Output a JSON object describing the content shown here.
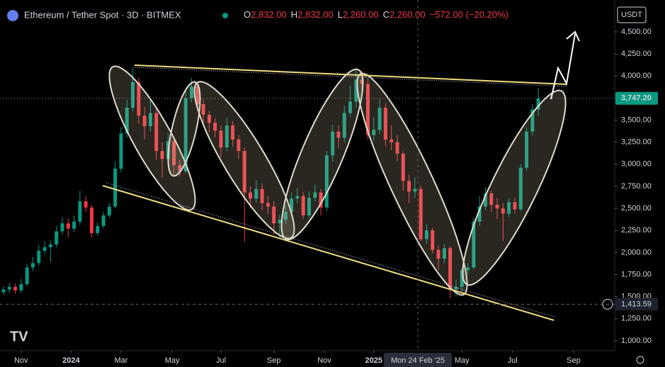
{
  "chart_data": {
    "type": "candlestick",
    "title": "Ethereum / Tether Spot · 3D · BITMEX",
    "header_values": [
      {
        "key": "O",
        "value": "2,832.00"
      },
      {
        "key": "H",
        "value": "2,832.00"
      },
      {
        "key": "L",
        "value": "2,260.00"
      },
      {
        "key": "C",
        "value": "2,260.00"
      }
    ],
    "change": "−572.00 (−20.20%)",
    "currency": "USDT",
    "up_color": "#089981",
    "down_color": "#f23645",
    "open": [
      1550,
      1580,
      1610,
      1570,
      1640,
      1830,
      1880,
      2020,
      2060,
      2090,
      2240,
      2330,
      2270,
      2350,
      2580,
      2510,
      2220,
      2300,
      2420,
      2520,
      2950,
      3350,
      3640,
      3930,
      3550,
      3430,
      3580,
      3150,
      3060,
      3260,
      2990,
      2920,
      3750,
      3880,
      3680,
      3560,
      3470,
      3380,
      3190,
      3440,
      3280,
      3150,
      2680,
      2610,
      2720,
      2560,
      2520,
      2330,
      2370,
      2460,
      2610,
      2640,
      2420,
      2620,
      2680,
      2510,
      3100,
      3370,
      3300,
      3580,
      3710,
      3960,
      3910,
      3330,
      3390,
      3640,
      3280,
      3250,
      3120,
      2810,
      2690,
      2720,
      2150,
      2250,
      2030,
      1930,
      2050,
      1580,
      1610,
      1800,
      1830,
      2350,
      2520,
      2670,
      2540,
      2500,
      2440,
      2570,
      2490,
      2960,
      3370,
      3620
    ],
    "high": [
      1620,
      1660,
      1650,
      1700,
      1870,
      1950,
      2090,
      2130,
      2140,
      2300,
      2400,
      2390,
      2420,
      2700,
      2640,
      2540,
      2340,
      2460,
      2560,
      3030,
      3420,
      3730,
      4090,
      3980,
      3650,
      3730,
      3620,
      3250,
      3350,
      3320,
      3050,
      3830,
      3980,
      3920,
      3740,
      3600,
      3520,
      3440,
      3530,
      3490,
      3330,
      3190,
      2750,
      2820,
      2780,
      2640,
      2580,
      2430,
      2530,
      2680,
      2730,
      2680,
      2690,
      2770,
      2720,
      3150,
      3450,
      3440,
      3660,
      3890,
      4070,
      4060,
      3970,
      3530,
      3740,
      3690,
      3440,
      3330,
      3150,
      2880,
      2850,
      2760,
      2320,
      2280,
      2080,
      2100,
      2070,
      1690,
      1830,
      1880,
      2400,
      2640,
      2740,
      2700,
      2620,
      2560,
      2620,
      2620,
      3000,
      3420,
      3680,
      3860
    ],
    "low": [
      1520,
      1540,
      1530,
      1540,
      1620,
      1790,
      1850,
      1980,
      1890,
      2060,
      2200,
      2170,
      2230,
      2310,
      2460,
      2170,
      2190,
      2270,
      2390,
      2500,
      2910,
      3300,
      3600,
      3460,
      3280,
      3370,
      3050,
      2850,
      3000,
      2880,
      2860,
      2900,
      3700,
      3620,
      3450,
      3360,
      3300,
      3080,
      3150,
      3200,
      3060,
      2120,
      2500,
      2560,
      2480,
      2440,
      2200,
      2160,
      2320,
      2410,
      2560,
      2380,
      2390,
      2580,
      2420,
      2470,
      3030,
      3180,
      3250,
      3540,
      3640,
      3800,
      3280,
      3270,
      3340,
      3200,
      3160,
      3040,
      2700,
      2560,
      2620,
      2130,
      2100,
      1990,
      1800,
      1880,
      1480,
      1500,
      1560,
      1750,
      1810,
      2300,
      2480,
      2460,
      2380,
      2130,
      2400,
      2440,
      2470,
      2930,
      3330,
      3550
    ],
    "close": [
      1580,
      1610,
      1570,
      1640,
      1830,
      1880,
      2020,
      2060,
      2090,
      2240,
      2330,
      2270,
      2350,
      2580,
      2510,
      2220,
      2300,
      2420,
      2520,
      2950,
      3350,
      3640,
      3930,
      3550,
      3430,
      3580,
      3150,
      3060,
      3260,
      2990,
      2920,
      3750,
      3880,
      3680,
      3560,
      3470,
      3380,
      3190,
      3440,
      3280,
      3150,
      2680,
      2610,
      2720,
      2560,
      2520,
      2330,
      2370,
      2460,
      2610,
      2640,
      2420,
      2620,
      2680,
      2510,
      3100,
      3370,
      3300,
      3580,
      3710,
      3960,
      3910,
      3330,
      3390,
      3640,
      3280,
      3250,
      3120,
      2810,
      2690,
      2720,
      2150,
      2250,
      2030,
      1930,
      2050,
      1580,
      1610,
      1800,
      1830,
      2350,
      2520,
      2670,
      2540,
      2500,
      2440,
      2570,
      2490,
      2960,
      3370,
      3620,
      3747.2
    ],
    "xlim": [
      -0.6,
      104
    ],
    "xticks": [
      {
        "value": 3,
        "label": "Nov"
      },
      {
        "value": 11.5,
        "label": "2024"
      },
      {
        "value": 20,
        "label": "Mar"
      },
      {
        "value": 28.7,
        "label": "May"
      },
      {
        "value": 37,
        "label": "Jul"
      },
      {
        "value": 46,
        "label": "Sep"
      },
      {
        "value": 54.6,
        "label": "Nov"
      },
      {
        "value": 63,
        "label": "2025"
      },
      {
        "value": 78,
        "label": "May"
      },
      {
        "value": 86.6,
        "label": "Jul"
      },
      {
        "value": 97,
        "label": "Sep"
      }
    ],
    "crosshair_x": {
      "value": 70.5,
      "label": "Mon 24 Feb '25"
    },
    "crosshair_y": {
      "value": 1413.59,
      "label": "1,413.59"
    },
    "last_price": {
      "value": 3747.2,
      "label": "3,747.20"
    },
    "ylim": [
      887,
      4861
    ],
    "yticks": [
      {
        "value": 1000,
        "label": "1,000.00"
      },
      {
        "value": 1250,
        "label": "1,250.00"
      },
      {
        "value": 1500,
        "label": "1,500.00"
      },
      {
        "value": 1750,
        "label": "1,750.00"
      },
      {
        "value": 2000,
        "label": "2,000.00"
      },
      {
        "value": 2250,
        "label": "2,250.00"
      },
      {
        "value": 2500,
        "label": "2,500.00"
      },
      {
        "value": 2750,
        "label": "2,750.00"
      },
      {
        "value": 3000,
        "label": "3,000.00"
      },
      {
        "value": 3250,
        "label": "3,250.00"
      },
      {
        "value": 3500,
        "label": "3,500.00"
      },
      {
        "value": 3750,
        "label": "3,750.00"
      },
      {
        "value": 4000,
        "label": "4,000.00"
      },
      {
        "value": 4250,
        "label": "4,250.00"
      },
      {
        "value": 4500,
        "label": "4,500.00"
      }
    ]
  }
}
